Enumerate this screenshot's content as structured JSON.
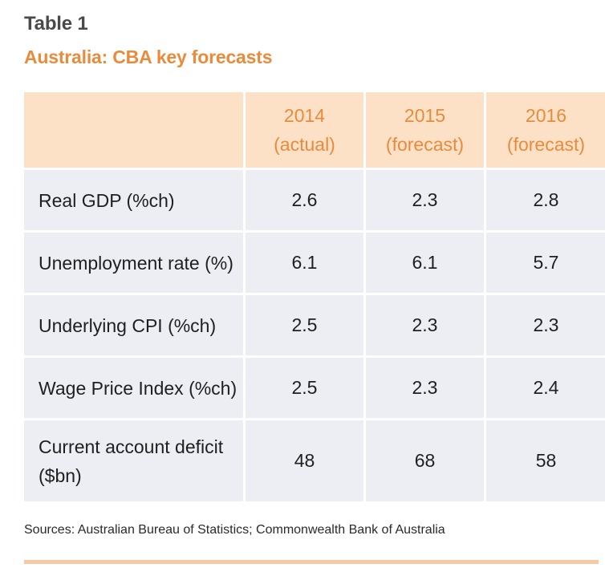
{
  "title": "Table 1",
  "subtitle": "Australia: CBA key forecasts",
  "table": {
    "headers": [
      {
        "line1": "",
        "line2": ""
      },
      {
        "line1": "2014",
        "line2": "(actual)"
      },
      {
        "line1": "2015",
        "line2": "(forecast)"
      },
      {
        "line1": "2016",
        "line2": "(forecast)"
      }
    ],
    "rows": [
      {
        "label_line1": "Real GDP (%ch)",
        "label_line2": "",
        "values": [
          "2.6",
          "2.3",
          "2.8"
        ]
      },
      {
        "label_line1": "Unemployment rate (%)",
        "label_line2": "",
        "values": [
          "6.1",
          "6.1",
          "5.7"
        ]
      },
      {
        "label_line1": "Underlying CPI (%ch)",
        "label_line2": "",
        "values": [
          "2.5",
          "2.3",
          "2.3"
        ]
      },
      {
        "label_line1": "Wage Price Index (%ch)",
        "label_line2": "",
        "values": [
          "2.5",
          "2.3",
          "2.4"
        ]
      },
      {
        "label_line1": "Current account deficit",
        "label_line2": "($bn)",
        "values": [
          "48",
          "68",
          "58"
        ]
      }
    ]
  },
  "sources": "Sources: Australian Bureau of Statistics; Commonwealth Bank of Australia",
  "colors": {
    "accent": "#ea8a3b",
    "header_bg": "#fde1c7",
    "cell_bg": "#eceef3",
    "rule": "#f7c9a0"
  }
}
